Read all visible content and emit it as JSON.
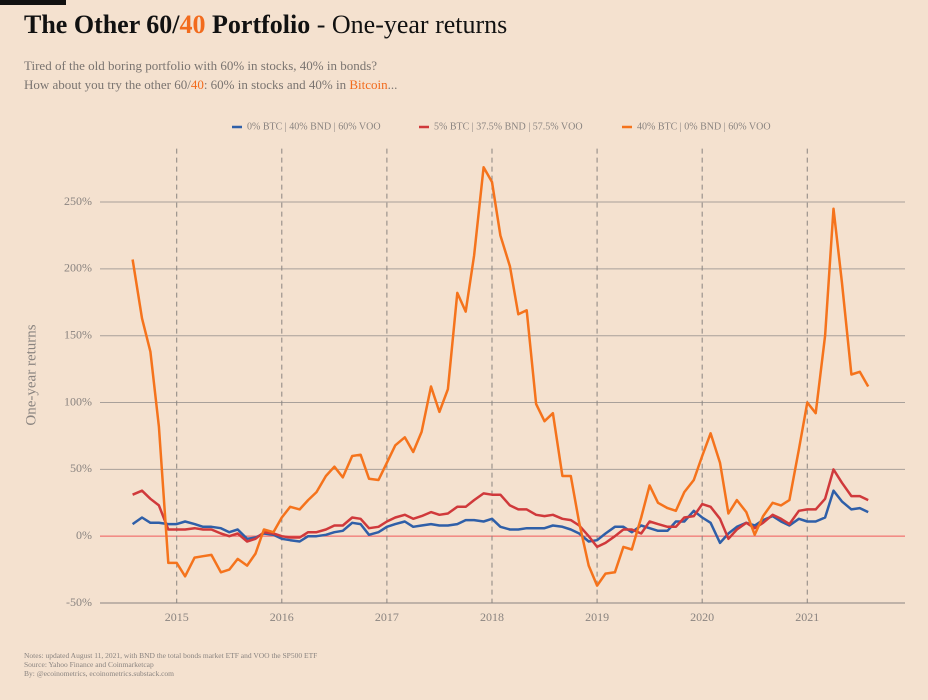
{
  "header": {
    "title_parts": [
      "The Other 60/",
      "40",
      " Portfolio"
    ],
    "title_suffix": " - One-year returns",
    "subtitle_line1": "Tired of the old boring portfolio with 60% in stocks, 40% in bonds?",
    "subtitle_line2_parts": [
      "How about you try the other 60/",
      "40",
      ": 60% in stocks and 40% in ",
      "Bitcoin",
      "..."
    ]
  },
  "notes": [
    "Notes: updated August 11, 2021, with BND the total bonds market ETF and VOO the SP500 ETF",
    "Source: Yahoo Finance and Coinmarketcap",
    "By: @ecoinometrics, ecoinometrics.substack.com"
  ],
  "chart_data": {
    "type": "line",
    "y_label": "One-year returns",
    "x": [
      2014.58,
      2014.67,
      2014.75,
      2014.83,
      2014.92,
      2015.0,
      2015.08,
      2015.17,
      2015.25,
      2015.33,
      2015.42,
      2015.5,
      2015.58,
      2015.67,
      2015.75,
      2015.83,
      2015.92,
      2016.0,
      2016.08,
      2016.17,
      2016.25,
      2016.33,
      2016.42,
      2016.5,
      2016.58,
      2016.67,
      2016.75,
      2016.83,
      2016.92,
      2017.0,
      2017.08,
      2017.17,
      2017.25,
      2017.33,
      2017.42,
      2017.5,
      2017.58,
      2017.67,
      2017.75,
      2017.83,
      2017.92,
      2018.0,
      2018.08,
      2018.17,
      2018.25,
      2018.33,
      2018.42,
      2018.5,
      2018.58,
      2018.67,
      2018.75,
      2018.83,
      2018.92,
      2019.0,
      2019.08,
      2019.17,
      2019.25,
      2019.33,
      2019.42,
      2019.5,
      2019.58,
      2019.67,
      2019.75,
      2019.83,
      2019.92,
      2020.0,
      2020.08,
      2020.17,
      2020.25,
      2020.33,
      2020.42,
      2020.5,
      2020.58,
      2020.67,
      2020.75,
      2020.83,
      2020.92,
      2021.0,
      2021.08,
      2021.17,
      2021.25,
      2021.33,
      2021.42,
      2021.5,
      2021.58
    ],
    "series": [
      {
        "name": "0% BTC | 40% BND | 60% VOO",
        "color": "#2f5fa8",
        "values": [
          9,
          14,
          10,
          10,
          9,
          9,
          11,
          9,
          7,
          7,
          6,
          3,
          5,
          -2,
          -1,
          2,
          1,
          -2,
          -3,
          -4,
          0,
          0,
          1,
          3,
          4,
          10,
          9,
          1,
          3,
          7,
          9,
          11,
          7,
          8,
          9,
          8,
          8,
          9,
          12,
          12,
          11,
          13,
          7,
          5,
          5,
          6,
          6,
          6,
          8,
          7,
          5,
          2,
          -4,
          -3,
          2,
          7,
          7,
          3,
          8,
          6,
          4,
          4,
          11,
          11,
          19,
          14,
          10,
          -5,
          2,
          7,
          10,
          8,
          12,
          15,
          11,
          8,
          13,
          11,
          11,
          14,
          34,
          26,
          20,
          21,
          18
        ]
      },
      {
        "name": "5% BTC | 37.5% BND | 57.5% VOO",
        "color": "#d0393b",
        "values": [
          31,
          34,
          28,
          23,
          5,
          5,
          5,
          6,
          5,
          5,
          2,
          0,
          2,
          -4,
          -2,
          3,
          2,
          0,
          -1,
          -1,
          3,
          3,
          5,
          8,
          8,
          14,
          13,
          6,
          7,
          11,
          14,
          16,
          13,
          15,
          18,
          16,
          17,
          22,
          22,
          27,
          32,
          31,
          31,
          23,
          20,
          20,
          16,
          15,
          16,
          13,
          12,
          8,
          0,
          -8,
          -5,
          0,
          5,
          5,
          2,
          11,
          9,
          7,
          7,
          14,
          15,
          24,
          22,
          13,
          -2,
          5,
          10,
          6,
          10,
          16,
          13,
          9,
          19,
          20,
          20,
          28,
          50,
          40,
          30,
          30,
          27
        ]
      },
      {
        "name": "40% BTC | 0% BND | 60% VOO",
        "color": "#f5731c",
        "values": [
          207,
          163,
          138,
          82,
          -20,
          -20,
          -30,
          -16,
          -15,
          -14,
          -27,
          -25,
          -17,
          -22,
          -13,
          5,
          3,
          14,
          22,
          20,
          27,
          33,
          45,
          52,
          44,
          60,
          61,
          43,
          42,
          55,
          68,
          74,
          63,
          78,
          112,
          93,
          110,
          182,
          168,
          210,
          276,
          265,
          225,
          202,
          166,
          169,
          99,
          86,
          92,
          45,
          45,
          10,
          -22,
          -37,
          -28,
          -27,
          -8,
          -10,
          14,
          38,
          25,
          21,
          19,
          33,
          42,
          60,
          77,
          55,
          17,
          27,
          18,
          1,
          15,
          25,
          23,
          27,
          65,
          100,
          92,
          150,
          245,
          190,
          121,
          123,
          112
        ]
      }
    ],
    "xlim": [
      2014.27,
      2021.93
    ],
    "xticks": [
      2015,
      2016,
      2017,
      2018,
      2019,
      2020,
      2021
    ],
    "ylim": [
      -50,
      290
    ],
    "yticks": [
      {
        "value": -50,
        "label": "-50%"
      },
      {
        "value": 0,
        "label": "0%"
      },
      {
        "value": 50,
        "label": "50%"
      },
      {
        "value": 100,
        "label": "100%"
      },
      {
        "value": 150,
        "label": "150%"
      },
      {
        "value": 200,
        "label": "200%"
      },
      {
        "value": 250,
        "label": "250%"
      }
    ],
    "grid": true,
    "legend": "top"
  }
}
